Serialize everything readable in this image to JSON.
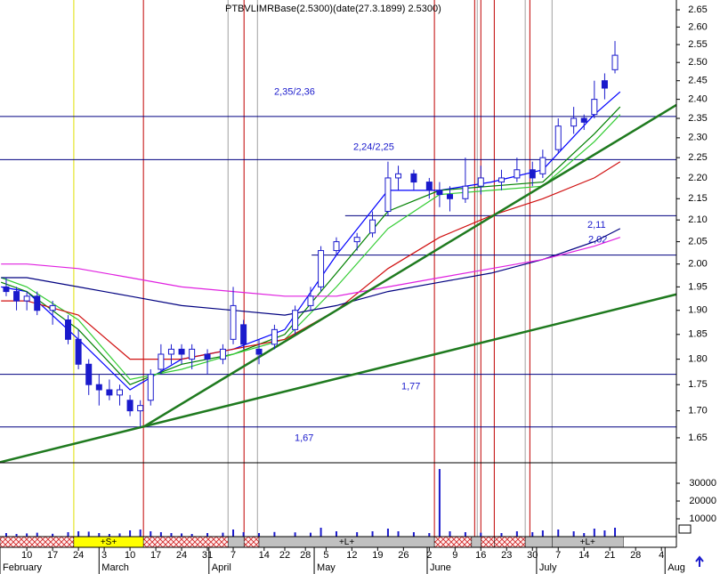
{
  "chart_data": {
    "type": "candlestick",
    "title": "PTBVLIMRBase(2.5300)(date(27.3.1899) 2.5300)",
    "log_y": true,
    "ylim": [
      1.605,
      2.679
    ],
    "yticks": [
      2.65,
      {
        "value": 2.6,
        "label": "2.60"
      },
      2.55,
      {
        "value": 2.5,
        "label": "2.50"
      },
      2.45,
      {
        "value": 2.4,
        "label": "2.40"
      },
      2.35,
      {
        "value": 2.3,
        "label": "2.30"
      },
      2.25,
      {
        "value": 2.2,
        "label": "2.20"
      },
      2.15,
      {
        "value": 2.1,
        "label": "2.10"
      },
      2.05,
      {
        "value": 2,
        "label": "2.00"
      },
      1.95,
      {
        "value": 1.9,
        "label": "1.90"
      },
      1.85,
      {
        "value": 1.8,
        "label": "1.80"
      },
      1.75,
      {
        "value": 1.7,
        "label": "1.70"
      },
      1.65
    ],
    "volume_ylim": [
      0,
      41500
    ],
    "volume_ticks": [
      10000,
      20000,
      30000
    ],
    "xlim": [
      -5.2,
      125.9
    ],
    "xticks": [
      {
        "value": 0,
        "label": "10"
      },
      {
        "value": 5,
        "label": "17"
      },
      {
        "value": 10,
        "label": "24"
      },
      {
        "value": 15,
        "label": "3"
      },
      {
        "value": 20,
        "label": "10"
      },
      {
        "value": 25,
        "label": "17"
      },
      {
        "value": 30,
        "label": "24"
      },
      {
        "value": 35,
        "label": "31"
      },
      {
        "value": 40,
        "label": "7"
      },
      {
        "value": 46,
        "label": "14"
      },
      {
        "value": 50,
        "label": "22"
      },
      {
        "value": 54,
        "label": "28"
      },
      {
        "value": 58,
        "label": "5"
      },
      {
        "value": 63,
        "label": "12"
      },
      {
        "value": 68,
        "label": "19"
      },
      {
        "value": 73,
        "label": "26"
      },
      {
        "value": 78,
        "label": "2"
      },
      {
        "value": 83,
        "label": "9"
      },
      {
        "value": 88,
        "label": "16"
      },
      {
        "value": 93,
        "label": "23"
      },
      {
        "value": 98,
        "label": "30"
      },
      {
        "value": 103,
        "label": "7"
      },
      {
        "value": 108,
        "label": "14"
      },
      {
        "value": 113,
        "label": "21"
      },
      {
        "value": 118,
        "label": "28"
      },
      {
        "value": 123,
        "label": "4"
      }
    ],
    "months": [
      {
        "value": -5.2,
        "label": "February"
      },
      {
        "value": 14,
        "label": "March"
      },
      {
        "value": 35.3,
        "label": "April"
      },
      {
        "value": 55.7,
        "label": "May"
      },
      {
        "value": 77.6,
        "label": "June"
      },
      {
        "value": 98.8,
        "label": "July"
      },
      {
        "value": 123.7,
        "label": "Aug"
      }
    ],
    "candle_color": "#1a1acc",
    "volume_color": "#1a1acc",
    "candles": {
      "x": [
        -4,
        -2,
        0,
        2,
        5,
        8,
        10,
        12,
        14,
        16,
        18,
        20,
        22,
        24,
        26,
        28,
        30,
        32,
        35,
        38,
        40,
        42,
        45,
        48,
        52,
        55,
        57,
        60,
        64,
        67,
        70,
        72,
        75,
        78,
        80,
        82,
        85,
        88,
        92,
        95,
        98,
        100,
        103,
        106,
        108,
        110,
        112,
        114
      ],
      "open": [
        1.95,
        1.94,
        1.92,
        1.93,
        1.9,
        1.88,
        1.84,
        1.79,
        1.75,
        1.74,
        1.73,
        1.72,
        1.7,
        1.72,
        1.78,
        1.81,
        1.82,
        1.8,
        1.81,
        1.8,
        1.84,
        1.87,
        1.82,
        1.83,
        1.86,
        1.91,
        1.95,
        2.03,
        2.05,
        2.07,
        2.12,
        2.2,
        2.21,
        2.19,
        2.17,
        2.16,
        2.15,
        2.18,
        2.19,
        2.2,
        2.22,
        2.21,
        2.27,
        2.33,
        2.35,
        2.36,
        2.45,
        2.48
      ],
      "high": [
        1.97,
        1.95,
        1.94,
        1.94,
        1.92,
        1.89,
        1.86,
        1.8,
        1.77,
        1.76,
        1.75,
        1.73,
        1.72,
        1.78,
        1.83,
        1.83,
        1.83,
        1.83,
        1.82,
        1.83,
        1.95,
        1.88,
        1.84,
        1.87,
        1.91,
        1.95,
        2.04,
        2.06,
        2.07,
        2.12,
        2.24,
        2.23,
        2.22,
        2.2,
        2.19,
        2.18,
        2.25,
        2.23,
        2.22,
        2.25,
        2.24,
        2.27,
        2.35,
        2.38,
        2.36,
        2.45,
        2.47,
        2.56
      ],
      "low": [
        1.93,
        1.9,
        1.9,
        1.89,
        1.87,
        1.83,
        1.78,
        1.73,
        1.71,
        1.72,
        1.71,
        1.69,
        1.67,
        1.71,
        1.77,
        1.79,
        1.79,
        1.78,
        1.77,
        1.79,
        1.83,
        1.82,
        1.79,
        1.82,
        1.85,
        1.9,
        1.94,
        2.02,
        2.03,
        2.06,
        2.11,
        2.17,
        2.17,
        2.15,
        2.13,
        2.12,
        2.14,
        2.16,
        2.17,
        2.19,
        2.18,
        2.2,
        2.26,
        2.31,
        2.32,
        2.35,
        2.4,
        2.47
      ],
      "close": [
        1.94,
        1.92,
        1.93,
        1.9,
        1.91,
        1.84,
        1.79,
        1.75,
        1.74,
        1.73,
        1.74,
        1.7,
        1.71,
        1.77,
        1.81,
        1.82,
        1.81,
        1.82,
        1.8,
        1.82,
        1.91,
        1.83,
        1.81,
        1.86,
        1.9,
        1.93,
        2.03,
        2.05,
        2.06,
        2.1,
        2.2,
        2.21,
        2.19,
        2.17,
        2.16,
        2.15,
        2.18,
        2.2,
        2.2,
        2.22,
        2.2,
        2.25,
        2.33,
        2.35,
        2.34,
        2.4,
        2.43,
        2.52
      ],
      "volume": [
        2000,
        1500,
        1800,
        2200,
        1600,
        2500,
        3000,
        2800,
        2000,
        1500,
        1800,
        3500,
        4000,
        3000,
        2500,
        2000,
        1800,
        1500,
        2000,
        2200,
        4000,
        2500,
        2000,
        2600,
        2400,
        2200,
        5000,
        3000,
        2500,
        3000,
        4500,
        3000,
        2500,
        2000,
        38000,
        3000,
        2500,
        2200,
        2000,
        3000,
        2500,
        3500,
        4000,
        3000,
        2000,
        4500,
        3500,
        5000
      ]
    },
    "ma_x": [
      -5,
      0,
      10,
      20,
      30,
      40,
      50,
      60,
      70,
      80,
      90,
      100,
      110,
      115
    ],
    "lines": [
      {
        "color": "#0000ff",
        "values": [
          1.95,
          1.94,
          1.84,
          1.74,
          1.8,
          1.82,
          1.86,
          2.02,
          2.17,
          2.17,
          2.19,
          2.22,
          2.36,
          2.42
        ]
      },
      {
        "color": "#008000",
        "values": [
          1.96,
          1.94,
          1.86,
          1.75,
          1.79,
          1.81,
          1.85,
          1.98,
          2.12,
          2.17,
          2.18,
          2.19,
          2.31,
          2.38
        ]
      },
      {
        "color": "#33cc33",
        "values": [
          1.97,
          1.95,
          1.88,
          1.76,
          1.78,
          1.81,
          1.84,
          1.95,
          2.08,
          2.16,
          2.17,
          2.18,
          2.29,
          2.36
        ]
      },
      {
        "color": "#d01010",
        "values": [
          1.92,
          1.92,
          1.89,
          1.8,
          1.8,
          1.82,
          1.84,
          1.9,
          1.99,
          2.06,
          2.11,
          2.15,
          2.2,
          2.24
        ]
      },
      {
        "color": "#000080",
        "values": [
          1.97,
          1.97,
          1.95,
          1.93,
          1.91,
          1.9,
          1.89,
          1.91,
          1.94,
          1.96,
          1.98,
          2.01,
          2.05,
          2.08
        ]
      },
      {
        "color": "#e020e0",
        "values": [
          2.0,
          2.0,
          1.99,
          1.97,
          1.95,
          1.94,
          1.93,
          1.93,
          1.95,
          1.97,
          1.99,
          2.01,
          2.04,
          2.06
        ]
      }
    ],
    "trendlines": [
      {
        "color": "#1f7a1f",
        "x": [
          -5.2,
          125.9
        ],
        "y": [
          1.606,
          1.934
        ]
      },
      {
        "color": "#1f7a1f",
        "x": [
          22.6,
          125.9
        ],
        "y": [
          1.67,
          2.385
        ]
      }
    ],
    "hlines": [
      {
        "value": 2.355,
        "start": -5.2,
        "label": "2,35/2,36"
      },
      {
        "value": 2.245,
        "start": -5.2,
        "label": "2,24/2,25"
      },
      {
        "value": 2.11,
        "start": 61.7,
        "label": "2,11"
      },
      {
        "value": 2.02,
        "start": 55.2,
        "label": "2,02"
      },
      {
        "value": 1.77,
        "start": -5.2,
        "label": "1,77"
      },
      {
        "value": 1.67,
        "start": -5.2,
        "label": "1,67"
      }
    ],
    "vlines": [
      {
        "x": 9.1,
        "color": "#e0e000"
      },
      {
        "x": 22.6,
        "color": "#c00000"
      },
      {
        "x": 39,
        "color": "#a0a0a0"
      },
      {
        "x": 42.1,
        "color": "#c00000"
      },
      {
        "x": 44.7,
        "color": "#a0a0a0"
      },
      {
        "x": 79,
        "color": "#c00000"
      },
      {
        "x": 86.8,
        "color": "#c00000"
      },
      {
        "x": 87.3,
        "color": "#a0a0a0"
      },
      {
        "x": 88,
        "color": "#c00000"
      },
      {
        "x": 90.6,
        "color": "#c00000"
      },
      {
        "x": 96.6,
        "color": "#a0a0a0"
      },
      {
        "x": 97.5,
        "color": "#c00000"
      },
      {
        "x": 101.8,
        "color": "#a0a0a0"
      }
    ],
    "signals": [
      {
        "start": -5.2,
        "end": 9.1,
        "state": "none"
      },
      {
        "start": 9.1,
        "end": 22.6,
        "state": "short",
        "label": "+S+"
      },
      {
        "start": 22.6,
        "end": 39,
        "state": "none"
      },
      {
        "start": 39,
        "end": 42.1,
        "state": "long"
      },
      {
        "start": 42.1,
        "end": 45,
        "state": "none"
      },
      {
        "start": 45,
        "end": 79,
        "state": "long",
        "label": "+L+"
      },
      {
        "start": 79,
        "end": 86.2,
        "state": "none"
      },
      {
        "start": 86.2,
        "end": 88,
        "state": "long"
      },
      {
        "start": 88,
        "end": 90.6,
        "state": "none"
      },
      {
        "start": 90.6,
        "end": 96.6,
        "state": "none"
      },
      {
        "start": 96.6,
        "end": 101.8,
        "state": "long"
      },
      {
        "start": 101.8,
        "end": 115.6,
        "state": "long",
        "label": "+L+"
      }
    ]
  }
}
